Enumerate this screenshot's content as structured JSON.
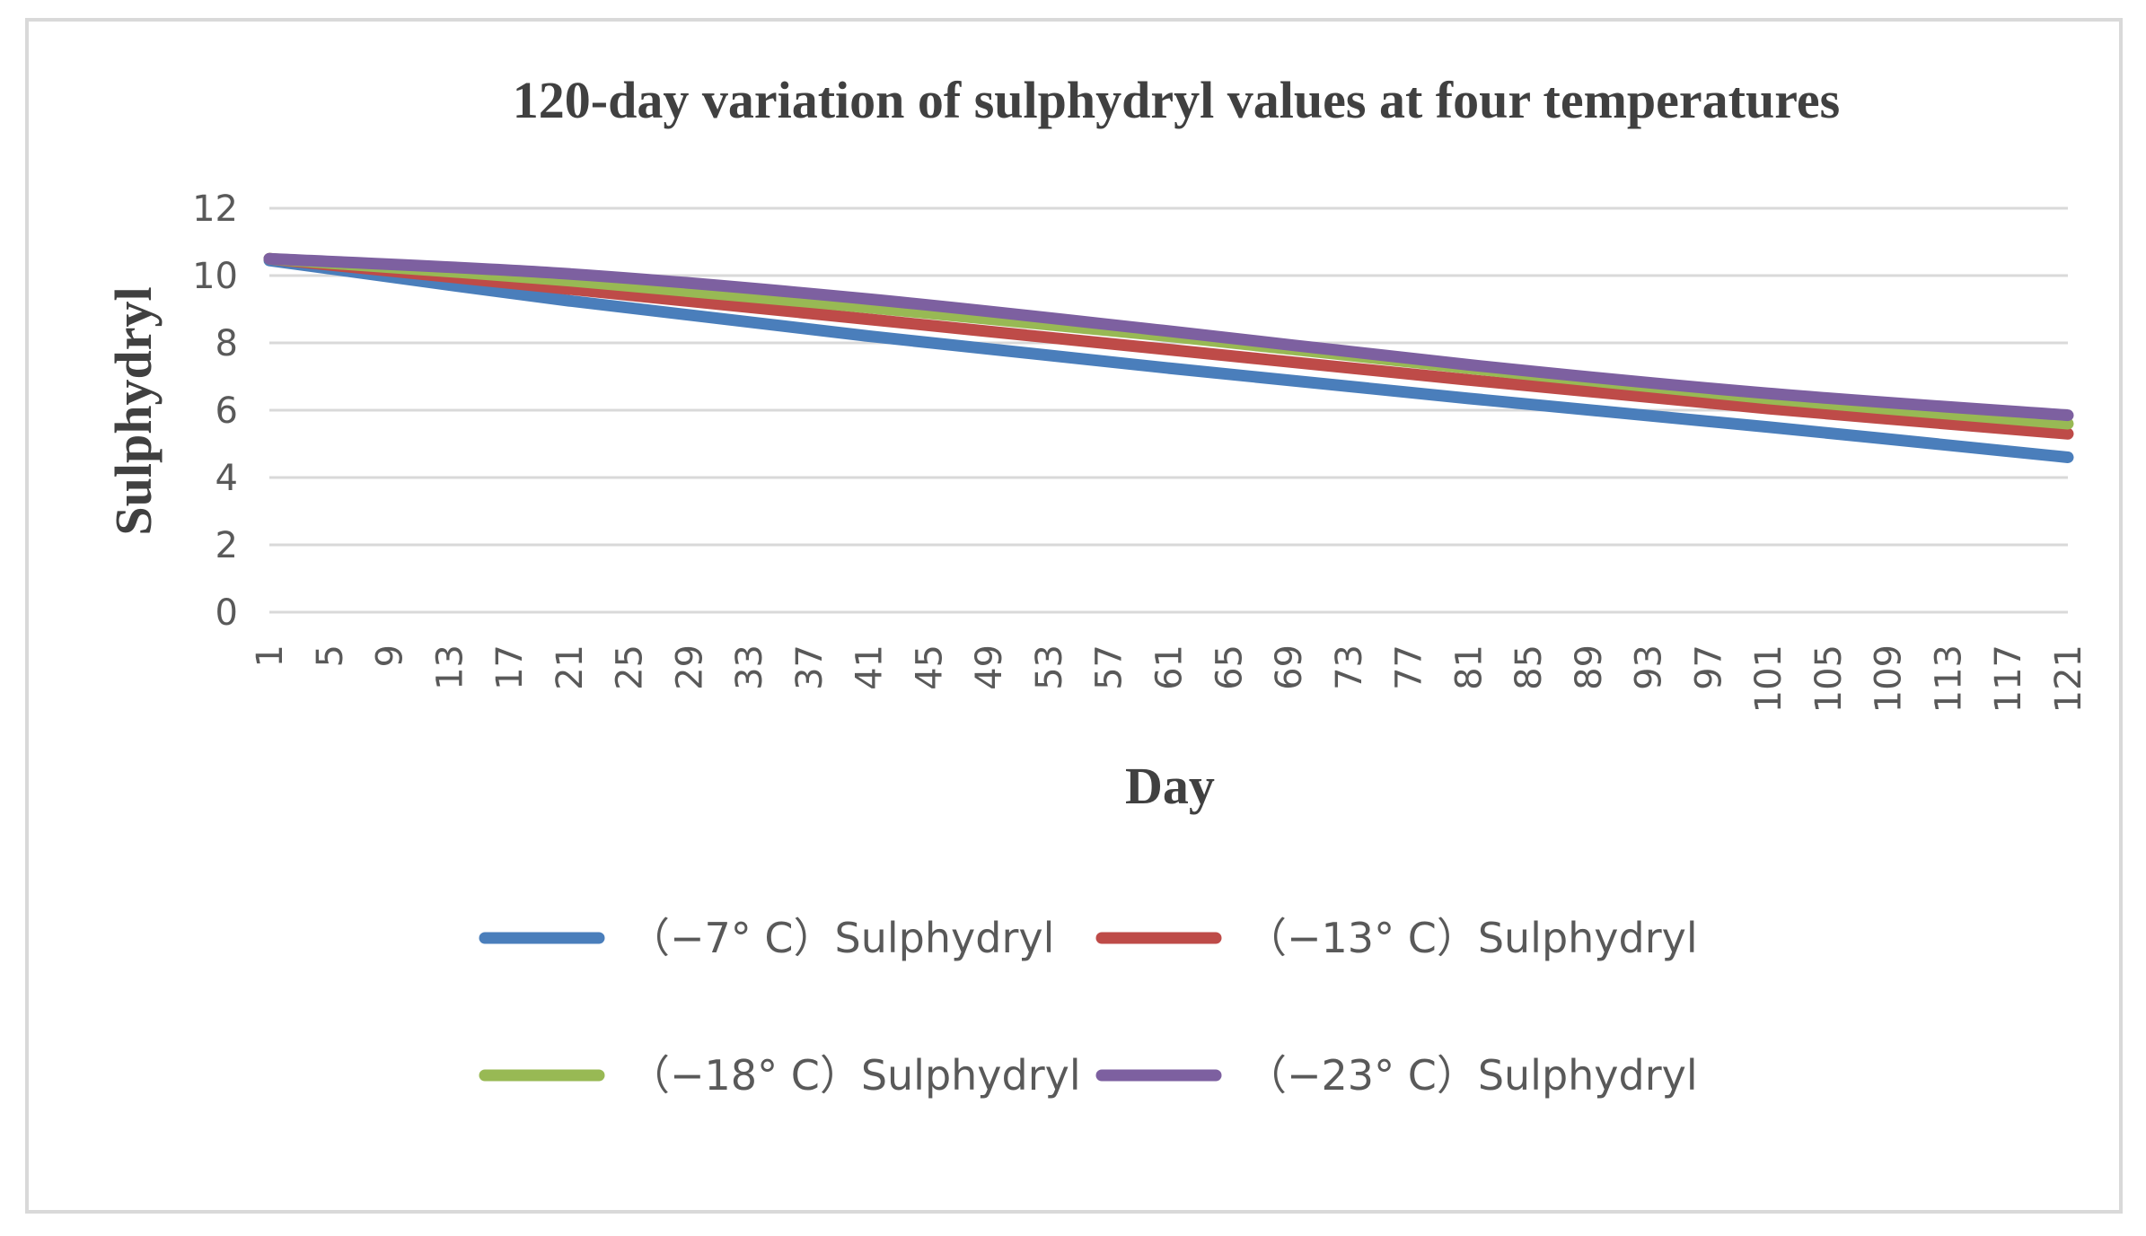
{
  "chart_data": {
    "type": "line",
    "title": "120-day variation of sulphydryl values at four temperatures",
    "xlabel": "Day",
    "ylabel": "Sulphydryl",
    "ylim": [
      0,
      12
    ],
    "yticks": [
      "0",
      "2",
      "4",
      "6",
      "8",
      "10",
      "12"
    ],
    "xlim": [
      1,
      121
    ],
    "xticks": [
      "1",
      "5",
      "9",
      "13",
      "17",
      "21",
      "25",
      "29",
      "33",
      "37",
      "41",
      "45",
      "49",
      "53",
      "57",
      "61",
      "65",
      "69",
      "73",
      "77",
      "81",
      "85",
      "89",
      "93",
      "97",
      "101",
      "105",
      "109",
      "113",
      "117",
      "121"
    ],
    "grid": true,
    "legend_position": "bottom",
    "series": [
      {
        "name": "（−7° C）Sulphydryl",
        "color": "#4a7ebb",
        "x": [
          1,
          21,
          41,
          61,
          81,
          101,
          121
        ],
        "values": [
          10.45,
          9.25,
          8.2,
          7.25,
          6.35,
          5.5,
          4.6
        ]
      },
      {
        "name": "（−13° C）Sulphydryl",
        "color": "#be4b48",
        "x": [
          1,
          21,
          41,
          61,
          81,
          101,
          121
        ],
        "values": [
          10.5,
          9.6,
          8.7,
          7.8,
          6.9,
          6.05,
          5.3
        ]
      },
      {
        "name": "（−18° C）Sulphydryl",
        "color": "#98b954",
        "x": [
          1,
          21,
          41,
          61,
          81,
          101,
          121
        ],
        "values": [
          10.5,
          9.85,
          9.05,
          8.2,
          7.25,
          6.35,
          5.6
        ]
      },
      {
        "name": "（−23° C）Sulphydryl",
        "color": "#7d60a0",
        "x": [
          1,
          21,
          41,
          61,
          81,
          101,
          121
        ],
        "values": [
          10.5,
          10.05,
          9.3,
          8.35,
          7.35,
          6.5,
          5.85
        ]
      }
    ]
  }
}
